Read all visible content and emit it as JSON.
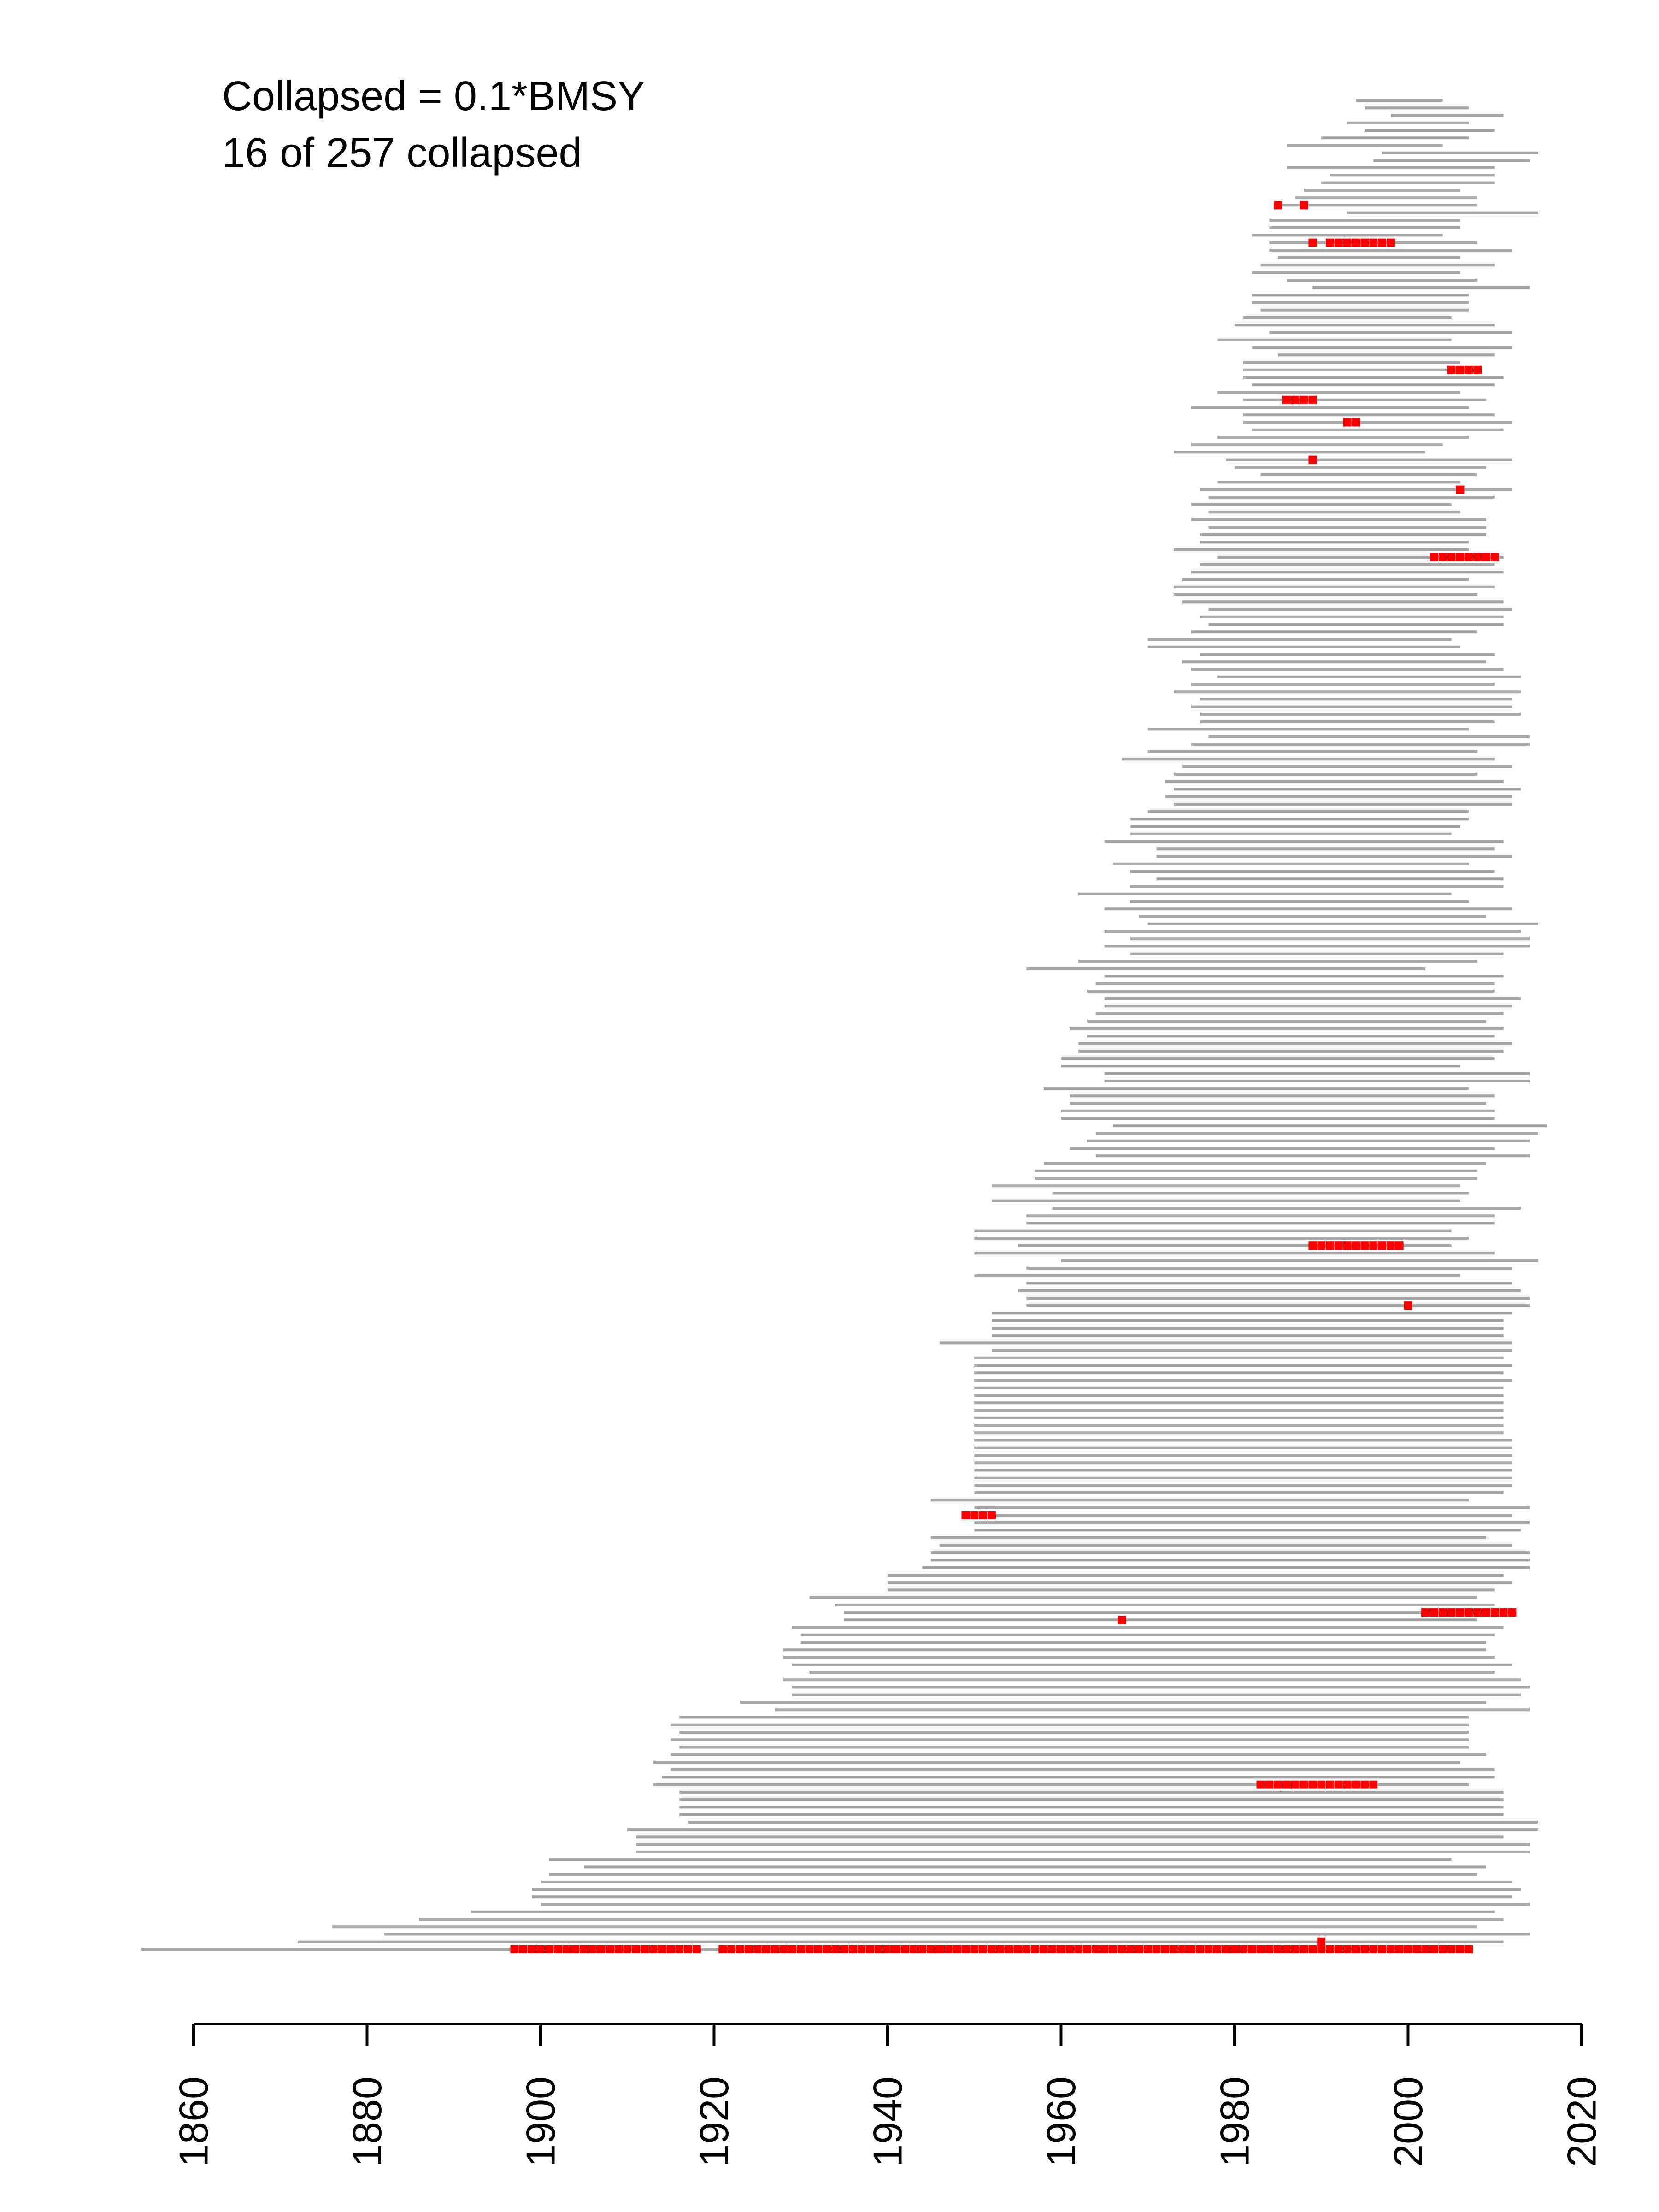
{
  "annotations": {
    "line1": "Collapsed = 0.1*BMSY",
    "line2": "16 of 257 collapsed"
  },
  "chart_data": {
    "type": "timeline",
    "xlim": [
      1860,
      2020
    ],
    "x_ticks": [
      "1860",
      "1880",
      "1900",
      "1920",
      "1940",
      "1960",
      "1980",
      "2000",
      "2020"
    ],
    "grid": false,
    "legend": "none",
    "colors": {
      "series": "#a6a6a6",
      "collapsed": "#ff0000",
      "axis": "#000000"
    },
    "n_series": 257,
    "n_collapsed": 16,
    "series_order": "top-to-bottom by decreasing first year (latest start at top)",
    "series": [
      {
        "start": 1994,
        "end": 2004
      },
      {
        "start": 1995,
        "end": 2007
      },
      {
        "start": 1998,
        "end": 2011
      },
      {
        "start": 1993,
        "end": 2007
      },
      {
        "start": 1995,
        "end": 2010
      },
      {
        "start": 1990,
        "end": 2007
      },
      {
        "start": 1986,
        "end": 2004
      },
      {
        "start": 1997,
        "end": 2015
      },
      {
        "start": 1996,
        "end": 2014
      },
      {
        "start": 1986,
        "end": 2010
      },
      {
        "start": 1991,
        "end": 2010
      },
      {
        "start": 1990,
        "end": 2010
      },
      {
        "start": 1988,
        "end": 2006
      },
      {
        "start": 1987,
        "end": 2008
      },
      {
        "start": 1985,
        "end": 2008,
        "collapsed": [
          [
            1985,
            1985
          ],
          [
            1988,
            1988
          ]
        ]
      },
      {
        "start": 1993,
        "end": 2015
      },
      {
        "start": 1984,
        "end": 2006
      },
      {
        "start": 1984,
        "end": 2006
      },
      {
        "start": 1982,
        "end": 2004
      },
      {
        "start": 1984,
        "end": 2008,
        "collapsed": [
          [
            1989,
            1989
          ],
          [
            1991,
            1998
          ]
        ]
      },
      {
        "start": 1984,
        "end": 2012
      },
      {
        "start": 1985,
        "end": 2006
      },
      {
        "start": 1983,
        "end": 2010
      },
      {
        "start": 1982,
        "end": 2006
      },
      {
        "start": 1986,
        "end": 2008
      },
      {
        "start": 1989,
        "end": 2014
      },
      {
        "start": 1982,
        "end": 2007
      },
      {
        "start": 1982,
        "end": 2007
      },
      {
        "start": 1983,
        "end": 2007
      },
      {
        "start": 1981,
        "end": 2005
      },
      {
        "start": 1980,
        "end": 2010
      },
      {
        "start": 1984,
        "end": 2012
      },
      {
        "start": 1978,
        "end": 2005
      },
      {
        "start": 1982,
        "end": 2012
      },
      {
        "start": 1985,
        "end": 2010
      },
      {
        "start": 1981,
        "end": 2006
      },
      {
        "start": 1981,
        "end": 2008,
        "collapsed": [
          [
            2005,
            2008
          ]
        ]
      },
      {
        "start": 1981,
        "end": 2011
      },
      {
        "start": 1982,
        "end": 2010
      },
      {
        "start": 1978,
        "end": 2006
      },
      {
        "start": 1981,
        "end": 2009,
        "collapsed": [
          [
            1986,
            1989
          ]
        ]
      },
      {
        "start": 1975,
        "end": 2007
      },
      {
        "start": 1981,
        "end": 2010
      },
      {
        "start": 1981,
        "end": 2012,
        "collapsed": [
          [
            1993,
            1994
          ]
        ]
      },
      {
        "start": 1982,
        "end": 2011
      },
      {
        "start": 1978,
        "end": 2007
      },
      {
        "start": 1975,
        "end": 2004
      },
      {
        "start": 1973,
        "end": 2002
      },
      {
        "start": 1979,
        "end": 2012,
        "collapsed": [
          [
            1989,
            1989
          ]
        ]
      },
      {
        "start": 1980,
        "end": 2009
      },
      {
        "start": 1983,
        "end": 2008
      },
      {
        "start": 1978,
        "end": 2006
      },
      {
        "start": 1976,
        "end": 2012,
        "collapsed": [
          [
            2006,
            2006
          ]
        ]
      },
      {
        "start": 1977,
        "end": 2010
      },
      {
        "start": 1975,
        "end": 2005
      },
      {
        "start": 1977,
        "end": 2006
      },
      {
        "start": 1975,
        "end": 2009
      },
      {
        "start": 1977,
        "end": 2009
      },
      {
        "start": 1976,
        "end": 2009
      },
      {
        "start": 1976,
        "end": 2007
      },
      {
        "start": 1973,
        "end": 2007
      },
      {
        "start": 1978,
        "end": 2011,
        "collapsed": [
          [
            2003,
            2010
          ]
        ]
      },
      {
        "start": 1976,
        "end": 2010
      },
      {
        "start": 1975,
        "end": 2011
      },
      {
        "start": 1974,
        "end": 2007
      },
      {
        "start": 1973,
        "end": 2010
      },
      {
        "start": 1973,
        "end": 2008
      },
      {
        "start": 1974,
        "end": 2011
      },
      {
        "start": 1977,
        "end": 2012
      },
      {
        "start": 1976,
        "end": 2011
      },
      {
        "start": 1977,
        "end": 2011
      },
      {
        "start": 1975,
        "end": 2008
      },
      {
        "start": 1970,
        "end": 2005
      },
      {
        "start": 1970,
        "end": 2006
      },
      {
        "start": 1976,
        "end": 2010
      },
      {
        "start": 1974,
        "end": 2009
      },
      {
        "start": 1975,
        "end": 2011
      },
      {
        "start": 1978,
        "end": 2013
      },
      {
        "start": 1975,
        "end": 2010
      },
      {
        "start": 1973,
        "end": 2013
      },
      {
        "start": 1976,
        "end": 2012
      },
      {
        "start": 1975,
        "end": 2012
      },
      {
        "start": 1976,
        "end": 2013
      },
      {
        "start": 1976,
        "end": 2010
      },
      {
        "start": 1970,
        "end": 2007
      },
      {
        "start": 1977,
        "end": 2014
      },
      {
        "start": 1975,
        "end": 2014
      },
      {
        "start": 1970,
        "end": 2008
      },
      {
        "start": 1967,
        "end": 2010
      },
      {
        "start": 1974,
        "end": 2012
      },
      {
        "start": 1973,
        "end": 2008
      },
      {
        "start": 1972,
        "end": 2011
      },
      {
        "start": 1973,
        "end": 2013
      },
      {
        "start": 1972,
        "end": 2012
      },
      {
        "start": 1973,
        "end": 2012
      },
      {
        "start": 1970,
        "end": 2007
      },
      {
        "start": 1968,
        "end": 2007
      },
      {
        "start": 1968,
        "end": 2006
      },
      {
        "start": 1968,
        "end": 2005
      },
      {
        "start": 1965,
        "end": 2011
      },
      {
        "start": 1971,
        "end": 2010
      },
      {
        "start": 1971,
        "end": 2012
      },
      {
        "start": 1966,
        "end": 2007
      },
      {
        "start": 1968,
        "end": 2010
      },
      {
        "start": 1971,
        "end": 2011
      },
      {
        "start": 1968,
        "end": 2011
      },
      {
        "start": 1962,
        "end": 2005
      },
      {
        "start": 1968,
        "end": 2007
      },
      {
        "start": 1965,
        "end": 2012
      },
      {
        "start": 1969,
        "end": 2009
      },
      {
        "start": 1970,
        "end": 2015
      },
      {
        "start": 1965,
        "end": 2013
      },
      {
        "start": 1968,
        "end": 2014
      },
      {
        "start": 1965,
        "end": 2014
      },
      {
        "start": 1968,
        "end": 2011
      },
      {
        "start": 1962,
        "end": 2008
      },
      {
        "start": 1956,
        "end": 2002
      },
      {
        "start": 1965,
        "end": 2011
      },
      {
        "start": 1964,
        "end": 2010
      },
      {
        "start": 1963,
        "end": 2010
      },
      {
        "start": 1965,
        "end": 2013
      },
      {
        "start": 1965,
        "end": 2012
      },
      {
        "start": 1964,
        "end": 2011
      },
      {
        "start": 1963,
        "end": 2009
      },
      {
        "start": 1961,
        "end": 2011
      },
      {
        "start": 1963,
        "end": 2010
      },
      {
        "start": 1962,
        "end": 2012
      },
      {
        "start": 1962,
        "end": 2011
      },
      {
        "start": 1960,
        "end": 2010
      },
      {
        "start": 1960,
        "end": 2006
      },
      {
        "start": 1965,
        "end": 2014
      },
      {
        "start": 1965,
        "end": 2014
      },
      {
        "start": 1958,
        "end": 2007
      },
      {
        "start": 1961,
        "end": 2010
      },
      {
        "start": 1961,
        "end": 2009
      },
      {
        "start": 1960,
        "end": 2010
      },
      {
        "start": 1960,
        "end": 2010
      },
      {
        "start": 1966,
        "end": 2016
      },
      {
        "start": 1964,
        "end": 2015
      },
      {
        "start": 1963,
        "end": 2014
      },
      {
        "start": 1961,
        "end": 2010
      },
      {
        "start": 1964,
        "end": 2014
      },
      {
        "start": 1958,
        "end": 2009
      },
      {
        "start": 1957,
        "end": 2008
      },
      {
        "start": 1957,
        "end": 2008
      },
      {
        "start": 1952,
        "end": 2006
      },
      {
        "start": 1959,
        "end": 2007
      },
      {
        "start": 1952,
        "end": 2006
      },
      {
        "start": 1959,
        "end": 2013
      },
      {
        "start": 1956,
        "end": 2010
      },
      {
        "start": 1956,
        "end": 2010
      },
      {
        "start": 1950,
        "end": 2005
      },
      {
        "start": 1950,
        "end": 2007
      },
      {
        "start": 1955,
        "end": 2005,
        "collapsed": [
          [
            1989,
            1999
          ]
        ]
      },
      {
        "start": 1950,
        "end": 2010
      },
      {
        "start": 1960,
        "end": 2015
      },
      {
        "start": 1956,
        "end": 2012
      },
      {
        "start": 1950,
        "end": 2006
      },
      {
        "start": 1956,
        "end": 2012
      },
      {
        "start": 1955,
        "end": 2013
      },
      {
        "start": 1956,
        "end": 2014
      },
      {
        "start": 1956,
        "end": 2014,
        "collapsed": [
          [
            2000,
            2000
          ]
        ]
      },
      {
        "start": 1952,
        "end": 2012
      },
      {
        "start": 1952,
        "end": 2011
      },
      {
        "start": 1952,
        "end": 2011
      },
      {
        "start": 1952,
        "end": 2011
      },
      {
        "start": 1946,
        "end": 2012
      },
      {
        "start": 1952,
        "end": 2012
      },
      {
        "start": 1950,
        "end": 2011
      },
      {
        "start": 1950,
        "end": 2012
      },
      {
        "start": 1950,
        "end": 2011
      },
      {
        "start": 1950,
        "end": 2012
      },
      {
        "start": 1950,
        "end": 2011
      },
      {
        "start": 1950,
        "end": 2011
      },
      {
        "start": 1950,
        "end": 2011
      },
      {
        "start": 1950,
        "end": 2011
      },
      {
        "start": 1950,
        "end": 2011
      },
      {
        "start": 1950,
        "end": 2011
      },
      {
        "start": 1950,
        "end": 2011
      },
      {
        "start": 1950,
        "end": 2012
      },
      {
        "start": 1950,
        "end": 2012
      },
      {
        "start": 1950,
        "end": 2012
      },
      {
        "start": 1950,
        "end": 2012
      },
      {
        "start": 1950,
        "end": 2012
      },
      {
        "start": 1950,
        "end": 2012
      },
      {
        "start": 1950,
        "end": 2012
      },
      {
        "start": 1950,
        "end": 2011
      },
      {
        "start": 1945,
        "end": 2007
      },
      {
        "start": 1950,
        "end": 2014
      },
      {
        "start": 1949,
        "end": 2012,
        "collapsed": [
          [
            1949,
            1952
          ]
        ]
      },
      {
        "start": 1950,
        "end": 2014
      },
      {
        "start": 1950,
        "end": 2013
      },
      {
        "start": 1945,
        "end": 2009
      },
      {
        "start": 1946,
        "end": 2012
      },
      {
        "start": 1945,
        "end": 2014
      },
      {
        "start": 1945,
        "end": 2014
      },
      {
        "start": 1944,
        "end": 2014
      },
      {
        "start": 1940,
        "end": 2011
      },
      {
        "start": 1940,
        "end": 2012
      },
      {
        "start": 1940,
        "end": 2010
      },
      {
        "start": 1931,
        "end": 2008
      },
      {
        "start": 1934,
        "end": 2010
      },
      {
        "start": 1935,
        "end": 2012,
        "collapsed": [
          [
            2002,
            2012
          ]
        ]
      },
      {
        "start": 1935,
        "end": 2008,
        "collapsed": [
          [
            1967,
            1967
          ]
        ]
      },
      {
        "start": 1929,
        "end": 2011
      },
      {
        "start": 1930,
        "end": 2010
      },
      {
        "start": 1930,
        "end": 2009
      },
      {
        "start": 1928,
        "end": 2009
      },
      {
        "start": 1928,
        "end": 2010
      },
      {
        "start": 1929,
        "end": 2012
      },
      {
        "start": 1931,
        "end": 2010
      },
      {
        "start": 1928,
        "end": 2013
      },
      {
        "start": 1929,
        "end": 2014
      },
      {
        "start": 1929,
        "end": 2013
      },
      {
        "start": 1923,
        "end": 2009
      },
      {
        "start": 1927,
        "end": 2014
      },
      {
        "start": 1916,
        "end": 2007
      },
      {
        "start": 1915,
        "end": 2007
      },
      {
        "start": 1916,
        "end": 2007
      },
      {
        "start": 1915,
        "end": 2007
      },
      {
        "start": 1916,
        "end": 2007
      },
      {
        "start": 1915,
        "end": 2009
      },
      {
        "start": 1913,
        "end": 2006
      },
      {
        "start": 1915,
        "end": 2010
      },
      {
        "start": 1914,
        "end": 2010
      },
      {
        "start": 1913,
        "end": 2007,
        "collapsed": [
          [
            1983,
            1996
          ]
        ]
      },
      {
        "start": 1916,
        "end": 2011
      },
      {
        "start": 1916,
        "end": 2011
      },
      {
        "start": 1916,
        "end": 2011
      },
      {
        "start": 1916,
        "end": 2011
      },
      {
        "start": 1917,
        "end": 2015
      },
      {
        "start": 1910,
        "end": 2015
      },
      {
        "start": 1911,
        "end": 2011
      },
      {
        "start": 1911,
        "end": 2014
      },
      {
        "start": 1911,
        "end": 2014
      },
      {
        "start": 1901,
        "end": 2005
      },
      {
        "start": 1905,
        "end": 2009
      },
      {
        "start": 1901,
        "end": 2008
      },
      {
        "start": 1900,
        "end": 2012
      },
      {
        "start": 1899,
        "end": 2013
      },
      {
        "start": 1899,
        "end": 2012
      },
      {
        "start": 1900,
        "end": 2014
      },
      {
        "start": 1892,
        "end": 2010
      },
      {
        "start": 1886,
        "end": 2011
      },
      {
        "start": 1876,
        "end": 2008
      },
      {
        "start": 1882,
        "end": 2014
      },
      {
        "start": 1872,
        "end": 2011,
        "collapsed": [
          [
            1990,
            1990
          ]
        ]
      },
      {
        "start": 1854,
        "end": 2007,
        "collapsed": [
          [
            1897,
            1918
          ],
          [
            1921,
            2007
          ]
        ]
      }
    ]
  }
}
